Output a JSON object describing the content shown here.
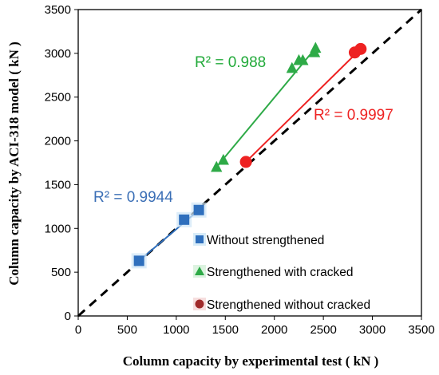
{
  "chart_data": {
    "type": "scatter",
    "xlabel": "Column capacity by experimental test ( kN )",
    "ylabel": "Column capacity by ACI-318  model ( kN )",
    "xlim": [
      0,
      3500
    ],
    "ylim": [
      0,
      3500
    ],
    "x_ticks": [
      "0",
      "500",
      "1000",
      "1500",
      "2000",
      "2500",
      "3000",
      "3500"
    ],
    "y_ticks": [
      "0",
      "500",
      "1000",
      "1500",
      "2000",
      "2500",
      "3000",
      "3500"
    ],
    "grid": false,
    "reference_line": {
      "style": "dashed",
      "color": "#000000",
      "from": [
        0,
        0
      ],
      "to": [
        3500,
        3500
      ]
    },
    "series": [
      {
        "name": "Without strengthened",
        "marker": "square",
        "color": "#2f6fbd",
        "points": [
          [
            620,
            630
          ],
          [
            1080,
            1100
          ],
          [
            1230,
            1210
          ]
        ],
        "trendline": {
          "from": [
            620,
            630
          ],
          "to": [
            1230,
            1210
          ]
        },
        "r2_label": "R² = 0.9944",
        "r2_color": "#3b6fb6"
      },
      {
        "name": "Strengthened with cracked",
        "marker": "triangle",
        "color": "#2eaa47",
        "points": [
          [
            1410,
            1700
          ],
          [
            1480,
            1780
          ],
          [
            2180,
            2830
          ],
          [
            2250,
            2920
          ],
          [
            2290,
            2920
          ],
          [
            2410,
            3010
          ],
          [
            2420,
            3060
          ]
        ],
        "trendline": {
          "from": [
            1410,
            1700
          ],
          "to": [
            2420,
            3060
          ]
        },
        "r2_label": "R² = 0.988",
        "r2_color": "#22aa3a"
      },
      {
        "name": "Strengthened without cracked",
        "marker": "circle",
        "color": "#ee2222",
        "points": [
          [
            1710,
            1760
          ],
          [
            2820,
            3010
          ],
          [
            2880,
            3050
          ]
        ],
        "trendline": {
          "from": [
            1710,
            1760
          ],
          "to": [
            2880,
            3050
          ]
        },
        "r2_label": "R² = 0.9997",
        "r2_color": "#ee2222"
      }
    ],
    "legend_position": "bottom-right"
  }
}
